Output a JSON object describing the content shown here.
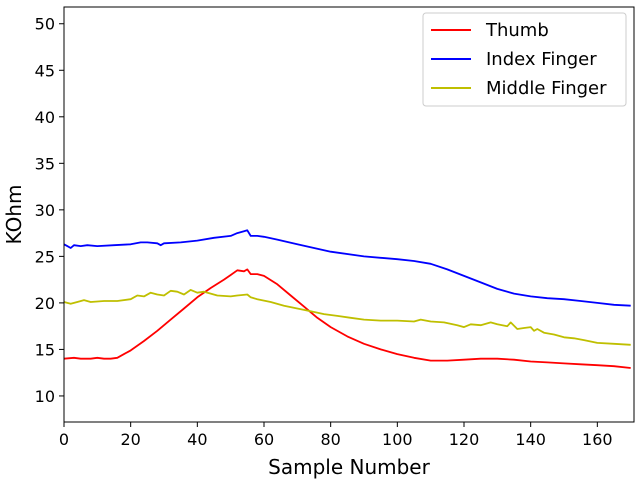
{
  "chart_data": {
    "type": "line",
    "title": "",
    "xlabel": "Sample Number",
    "ylabel": "KOhm",
    "xlim": [
      0,
      171
    ],
    "ylim": [
      7.2,
      51.8
    ],
    "xticks": [
      0,
      20,
      40,
      60,
      80,
      100,
      120,
      140,
      160
    ],
    "yticks": [
      10,
      15,
      20,
      25,
      30,
      35,
      40,
      45,
      50
    ],
    "grid": false,
    "legend_position": "top-right",
    "series": [
      {
        "name": "Thumb",
        "color": "#ff0000",
        "x": [
          0,
          3,
          5,
          8,
          10,
          12,
          14,
          16,
          18,
          20,
          24,
          28,
          32,
          36,
          40,
          44,
          48,
          50,
          52,
          54,
          55,
          56,
          58,
          60,
          64,
          68,
          72,
          76,
          80,
          85,
          90,
          95,
          100,
          105,
          110,
          115,
          120,
          125,
          130,
          135,
          140,
          145,
          150,
          155,
          160,
          165,
          170
        ],
        "y": [
          14.0,
          14.1,
          14.0,
          14.0,
          14.1,
          14.0,
          14.0,
          14.1,
          14.5,
          14.9,
          15.9,
          17.0,
          18.2,
          19.4,
          20.6,
          21.6,
          22.5,
          23.0,
          23.5,
          23.4,
          23.6,
          23.1,
          23.1,
          22.9,
          22.0,
          20.8,
          19.6,
          18.4,
          17.4,
          16.4,
          15.6,
          15.0,
          14.5,
          14.1,
          13.8,
          13.8,
          13.9,
          14.0,
          14.0,
          13.9,
          13.7,
          13.6,
          13.5,
          13.4,
          13.3,
          13.2,
          13.0
        ]
      },
      {
        "name": "Index Finger",
        "color": "#0000ff",
        "x": [
          0,
          1,
          2,
          3,
          5,
          7,
          10,
          15,
          20,
          23,
          25,
          28,
          29,
          30,
          35,
          40,
          45,
          50,
          52,
          54,
          55,
          56,
          58,
          60,
          64,
          70,
          80,
          90,
          100,
          105,
          110,
          115,
          120,
          125,
          130,
          135,
          140,
          145,
          150,
          155,
          160,
          165,
          170
        ],
        "y": [
          26.3,
          26.1,
          25.9,
          26.2,
          26.1,
          26.2,
          26.1,
          26.2,
          26.3,
          26.5,
          26.5,
          26.4,
          26.2,
          26.4,
          26.5,
          26.7,
          27.0,
          27.2,
          27.5,
          27.7,
          27.8,
          27.2,
          27.2,
          27.1,
          26.8,
          26.3,
          25.5,
          25.0,
          24.7,
          24.5,
          24.2,
          23.6,
          22.9,
          22.2,
          21.5,
          21.0,
          20.7,
          20.5,
          20.4,
          20.2,
          20.0,
          19.8,
          19.7
        ]
      },
      {
        "name": "Middle Finger",
        "color": "#bfbf00",
        "x": [
          0,
          2,
          4,
          6,
          8,
          12,
          16,
          20,
          22,
          24,
          26,
          28,
          30,
          32,
          34,
          36,
          38,
          40,
          42,
          44,
          46,
          50,
          52,
          55,
          56,
          58,
          62,
          66,
          70,
          74,
          78,
          82,
          86,
          90,
          95,
          100,
          105,
          107,
          110,
          114,
          118,
          120,
          122,
          125,
          128,
          130,
          133,
          134,
          136,
          138,
          140,
          141,
          142,
          144,
          147,
          150,
          153,
          156,
          160,
          165,
          170
        ],
        "y": [
          20.1,
          19.9,
          20.1,
          20.3,
          20.1,
          20.2,
          20.2,
          20.4,
          20.8,
          20.7,
          21.1,
          20.9,
          20.8,
          21.3,
          21.2,
          20.9,
          21.4,
          21.1,
          21.2,
          21.0,
          20.8,
          20.7,
          20.8,
          20.9,
          20.6,
          20.4,
          20.1,
          19.7,
          19.4,
          19.1,
          18.8,
          18.6,
          18.4,
          18.2,
          18.1,
          18.1,
          18.0,
          18.2,
          18.0,
          17.9,
          17.6,
          17.4,
          17.7,
          17.6,
          17.9,
          17.7,
          17.5,
          17.9,
          17.2,
          17.3,
          17.4,
          17.0,
          17.2,
          16.8,
          16.6,
          16.3,
          16.2,
          16.0,
          15.7,
          15.6,
          15.5
        ]
      }
    ]
  }
}
